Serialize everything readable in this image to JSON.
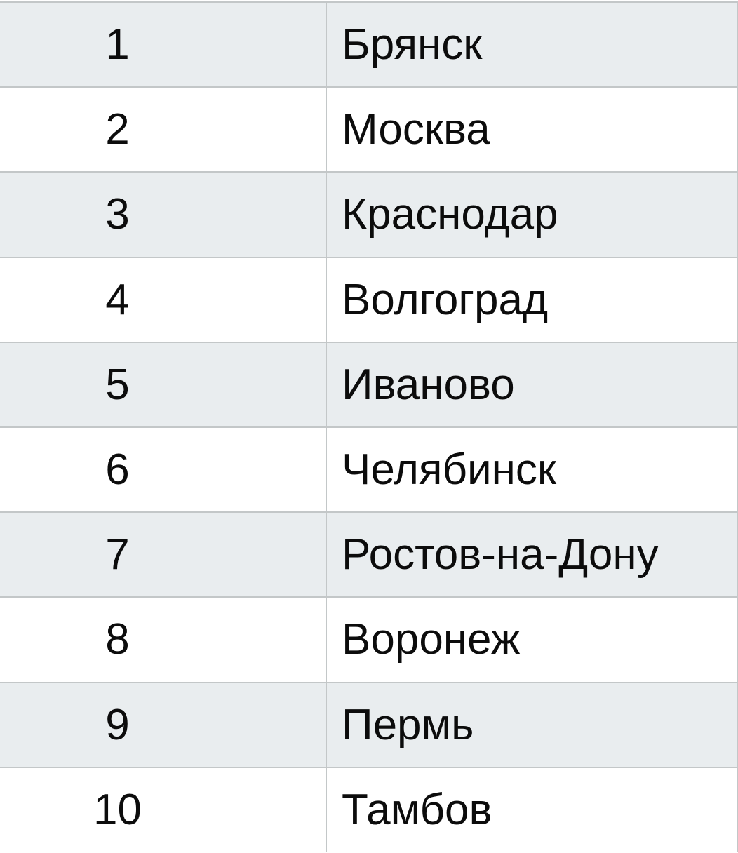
{
  "chart_data": {
    "type": "table",
    "header_visible": false,
    "rows": [
      {
        "rank": "1",
        "city": "Брянск"
      },
      {
        "rank": "2",
        "city": "Москва"
      },
      {
        "rank": "3",
        "city": "Краснодар"
      },
      {
        "rank": "4",
        "city": "Волгоград"
      },
      {
        "rank": "5",
        "city": "Иваново"
      },
      {
        "rank": "6",
        "city": "Челябинск"
      },
      {
        "rank": "7",
        "city": "Ростов-на-Дону"
      },
      {
        "rank": "8",
        "city": "Воронеж"
      },
      {
        "rank": "9",
        "city": "Пермь"
      },
      {
        "rank": "10",
        "city": "Тамбов"
      }
    ]
  },
  "colors": {
    "alternate_row_background": "#e9edef",
    "row_background": "#ffffff",
    "border": "#c3c7c8",
    "text": "#0c0c0c"
  }
}
